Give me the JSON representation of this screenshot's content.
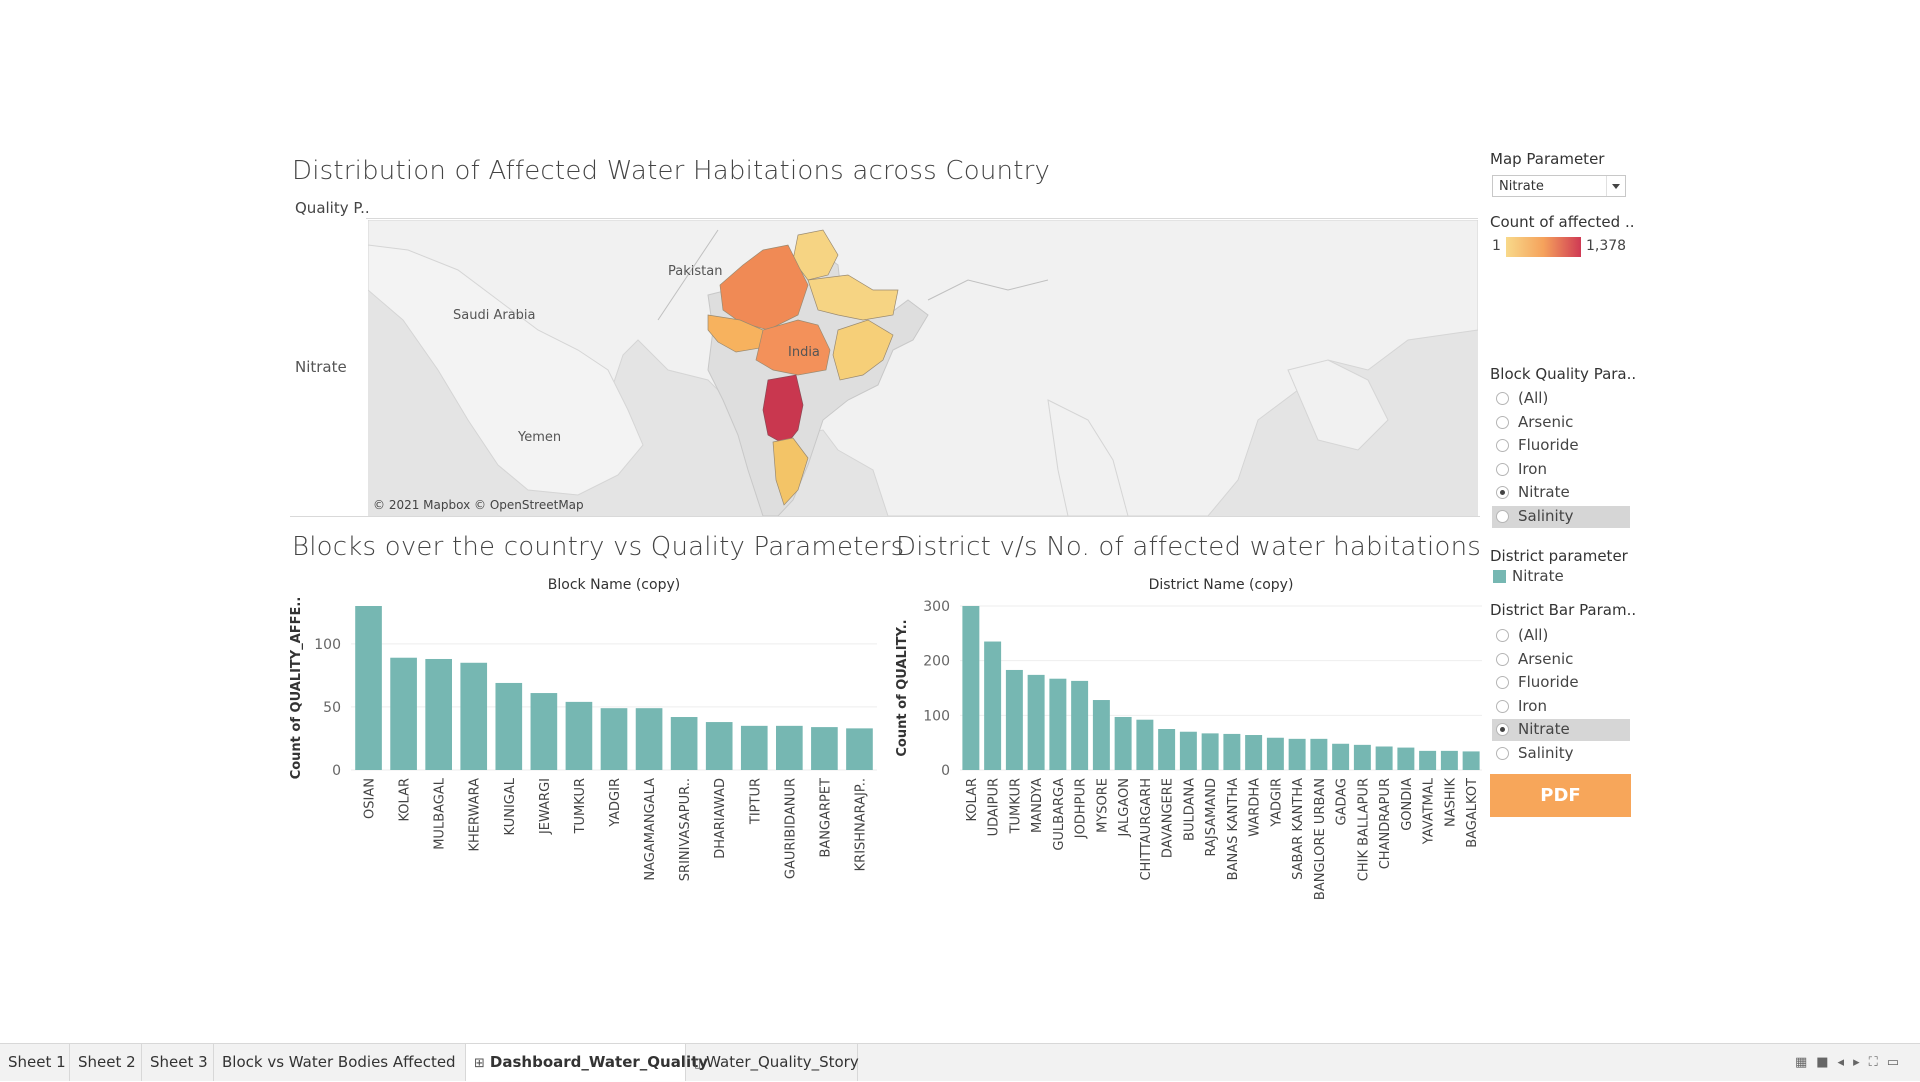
{
  "dashboard": {
    "map_title": "Distribution of Affected Water Habitations across Country",
    "map_row_header": "Quality P..",
    "map_row_label": "Nitrate",
    "map_attribution": "© 2021 Mapbox © OpenStreetMap",
    "map_places": [
      "Pakistan",
      "Saudi Arabia",
      "India",
      "Yemen"
    ],
    "block_chart_title": "Blocks over the country vs Quality Parameters",
    "district_chart_title": "District v/s No. of affected water habitations"
  },
  "sidebar": {
    "map_parameter_label": "Map Parameter",
    "map_parameter_value": "Nitrate",
    "legend_label": "Count of affected ..",
    "legend_min": "1",
    "legend_max": "1,378",
    "legend_colors": [
      "#f8d98a",
      "#f5a25c",
      "#cf3a54"
    ],
    "block_quality_label": "Block Quality Para..",
    "block_quality_options": [
      "(All)",
      "Arsenic",
      "Fluoride",
      "Iron",
      "Nitrate",
      "Salinity"
    ],
    "block_quality_selected": "Nitrate",
    "district_parameter_label": "District parameter",
    "district_parameter_value": "Nitrate",
    "district_parameter_color": "#76b7b2",
    "district_bar_label": "District Bar Param..",
    "district_bar_options": [
      "(All)",
      "Arsenic",
      "Fluoride",
      "Iron",
      "Nitrate",
      "Salinity"
    ],
    "district_bar_selected": "Nitrate",
    "pdf_label": "PDF"
  },
  "chart_data": [
    {
      "type": "bar",
      "title": "Blocks over the country vs Quality Parameters",
      "xlabel": "Block Name (copy)",
      "ylabel": "Count of QUALITY_AFFE..",
      "color": "#76b7b2",
      "ylim": [
        0,
        130
      ],
      "yticks": [
        0,
        50,
        100
      ],
      "categories": [
        "OSIAN",
        "KOLAR",
        "MULBAGAL",
        "KHERWARA",
        "KUNIGAL",
        "JEWARGI",
        "TUMKUR",
        "YADGIR",
        "NAGAMANGALA",
        "SRINIVASAPUR..",
        "DHARIAWAD",
        "TIPTUR",
        "GAURIBIDANUR",
        "BANGARPET",
        "KRISHNARAJP.."
      ],
      "values": [
        130,
        89,
        88,
        85,
        69,
        61,
        54,
        49,
        49,
        42,
        38,
        35,
        35,
        34,
        33
      ]
    },
    {
      "type": "bar",
      "title": "District v/s No. of affected water habitations",
      "xlabel": "District Name (copy)",
      "ylabel": "Count of QUALITY..",
      "color": "#76b7b2",
      "ylim": [
        0,
        300
      ],
      "yticks": [
        0,
        100,
        200,
        300
      ],
      "categories": [
        "KOLAR",
        "UDAIPUR",
        "TUMKUR",
        "MANDYA",
        "GULBARGA",
        "JODHPUR",
        "MYSORE",
        "JALGAON",
        "CHITTAURGARH",
        "DAVANGERE",
        "BULDANA",
        "RAJSAMAND",
        "BANAS KANTHA",
        "WARDHA",
        "YADGIR",
        "SABAR KANTHA",
        "BANGLORE URBAN",
        "GADAG",
        "CHIK BALLAPUR",
        "CHANDRAPUR",
        "GONDIA",
        "YAVATMAL",
        "NASHIK",
        "BAGALKOT"
      ],
      "values": [
        300,
        235,
        183,
        174,
        167,
        163,
        128,
        97,
        92,
        75,
        70,
        67,
        66,
        64,
        59,
        57,
        57,
        48,
        46,
        43,
        41,
        35,
        35,
        34
      ]
    }
  ],
  "tabs": [
    {
      "label": "Sheet 1",
      "icon": "",
      "active": false
    },
    {
      "label": "Sheet 2",
      "icon": "",
      "active": false
    },
    {
      "label": "Sheet 3",
      "icon": "",
      "active": false
    },
    {
      "label": "Block vs Water Bodies Affected",
      "icon": "",
      "active": false
    },
    {
      "label": "Dashboard_Water_Quality",
      "icon": "dashboard-icon",
      "active": true
    },
    {
      "label": "Water_Quality_Story",
      "icon": "story-icon",
      "active": false
    }
  ]
}
